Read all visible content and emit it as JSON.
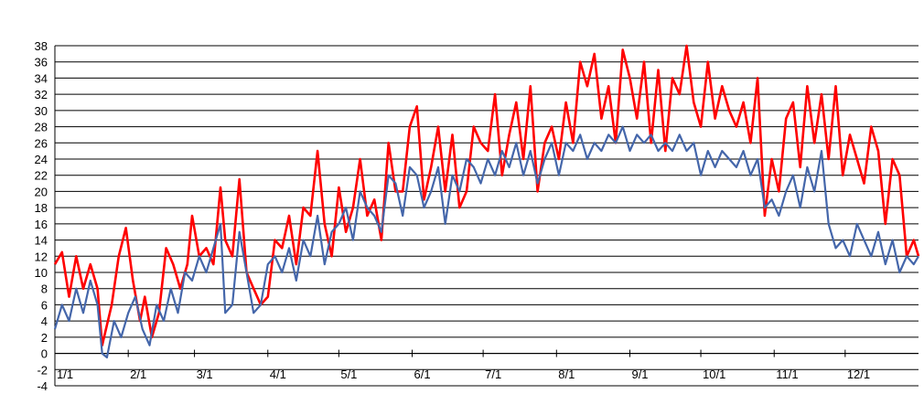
{
  "chart_data": {
    "type": "line",
    "title": "",
    "xlabel": "",
    "ylabel": "",
    "ylim": [
      -4,
      38
    ],
    "yticks": [
      -4,
      -2,
      0,
      2,
      4,
      6,
      8,
      10,
      12,
      14,
      16,
      18,
      20,
      22,
      24,
      26,
      28,
      30,
      32,
      34,
      36,
      38
    ],
    "grid": "horizontal",
    "legend": "none",
    "xlim": [
      0,
      365
    ],
    "x_tick_positions": [
      0,
      31,
      59,
      90,
      120,
      151,
      181,
      212,
      243,
      273,
      304,
      334
    ],
    "x_tick_labels": [
      "1/1",
      "2/1",
      "3/1",
      "4/1",
      "5/1",
      "6/1",
      "7/1",
      "8/1",
      "9/1",
      "10/1",
      "11/1",
      "12/1"
    ],
    "series": [
      {
        "color": "#ff0000",
        "points": [
          [
            0,
            11
          ],
          [
            3,
            12.5
          ],
          [
            6,
            7
          ],
          [
            9,
            12
          ],
          [
            12,
            8
          ],
          [
            15,
            11
          ],
          [
            18,
            8
          ],
          [
            20,
            1
          ],
          [
            24,
            6
          ],
          [
            27,
            12
          ],
          [
            30,
            15.5
          ],
          [
            33,
            9
          ],
          [
            36,
            4
          ],
          [
            38,
            7
          ],
          [
            41,
            2
          ],
          [
            44,
            5
          ],
          [
            47,
            13
          ],
          [
            50,
            11
          ],
          [
            53,
            8
          ],
          [
            56,
            11
          ],
          [
            58,
            17
          ],
          [
            61,
            12
          ],
          [
            64,
            13
          ],
          [
            67,
            11
          ],
          [
            70,
            20.5
          ],
          [
            72,
            14
          ],
          [
            75,
            12
          ],
          [
            78,
            21.5
          ],
          [
            81,
            10
          ],
          [
            84,
            8
          ],
          [
            87,
            6
          ],
          [
            90,
            7
          ],
          [
            93,
            14
          ],
          [
            96,
            13
          ],
          [
            99,
            17
          ],
          [
            102,
            11
          ],
          [
            105,
            18
          ],
          [
            108,
            17
          ],
          [
            111,
            25
          ],
          [
            114,
            16
          ],
          [
            117,
            12
          ],
          [
            120,
            20.5
          ],
          [
            123,
            15
          ],
          [
            126,
            18
          ],
          [
            129,
            24
          ],
          [
            132,
            17
          ],
          [
            135,
            19
          ],
          [
            138,
            14
          ],
          [
            141,
            26
          ],
          [
            144,
            20
          ],
          [
            147,
            20
          ],
          [
            150,
            28
          ],
          [
            153,
            30.5
          ],
          [
            156,
            19
          ],
          [
            159,
            23
          ],
          [
            162,
            28
          ],
          [
            165,
            20
          ],
          [
            168,
            27
          ],
          [
            171,
            18
          ],
          [
            174,
            20
          ],
          [
            177,
            28
          ],
          [
            180,
            26
          ],
          [
            183,
            25
          ],
          [
            186,
            32
          ],
          [
            189,
            22
          ],
          [
            192,
            27
          ],
          [
            195,
            31
          ],
          [
            198,
            24
          ],
          [
            201,
            33
          ],
          [
            204,
            20
          ],
          [
            207,
            26
          ],
          [
            210,
            28
          ],
          [
            213,
            24
          ],
          [
            216,
            31
          ],
          [
            219,
            26
          ],
          [
            222,
            36
          ],
          [
            225,
            33
          ],
          [
            228,
            37
          ],
          [
            231,
            29
          ],
          [
            234,
            33
          ],
          [
            237,
            26
          ],
          [
            240,
            37.5
          ],
          [
            243,
            34
          ],
          [
            246,
            29
          ],
          [
            249,
            36
          ],
          [
            252,
            26
          ],
          [
            255,
            35
          ],
          [
            258,
            25
          ],
          [
            261,
            34
          ],
          [
            264,
            32
          ],
          [
            267,
            38
          ],
          [
            270,
            31
          ],
          [
            273,
            28
          ],
          [
            276,
            36
          ],
          [
            279,
            29
          ],
          [
            282,
            33
          ],
          [
            285,
            30
          ],
          [
            288,
            28
          ],
          [
            291,
            31
          ],
          [
            294,
            26
          ],
          [
            297,
            34
          ],
          [
            300,
            17
          ],
          [
            303,
            24
          ],
          [
            306,
            20
          ],
          [
            309,
            29
          ],
          [
            312,
            31
          ],
          [
            315,
            23
          ],
          [
            318,
            33
          ],
          [
            321,
            26
          ],
          [
            324,
            32
          ],
          [
            327,
            24
          ],
          [
            330,
            33
          ],
          [
            333,
            22
          ],
          [
            336,
            27
          ],
          [
            339,
            24
          ],
          [
            342,
            21
          ],
          [
            345,
            28
          ],
          [
            348,
            25
          ],
          [
            351,
            16
          ],
          [
            354,
            24
          ],
          [
            357,
            22
          ],
          [
            360,
            12
          ],
          [
            363,
            14
          ],
          [
            365,
            12
          ]
        ]
      },
      {
        "color": "#4466aa",
        "points": [
          [
            0,
            3
          ],
          [
            3,
            6
          ],
          [
            6,
            4
          ],
          [
            9,
            8
          ],
          [
            12,
            5
          ],
          [
            15,
            9
          ],
          [
            18,
            6
          ],
          [
            20,
            0
          ],
          [
            22,
            -0.5
          ],
          [
            25,
            4
          ],
          [
            28,
            2
          ],
          [
            31,
            5
          ],
          [
            34,
            7
          ],
          [
            37,
            3
          ],
          [
            40,
            1
          ],
          [
            43,
            6
          ],
          [
            46,
            4
          ],
          [
            49,
            8
          ],
          [
            52,
            5
          ],
          [
            55,
            10
          ],
          [
            58,
            9
          ],
          [
            61,
            12
          ],
          [
            64,
            10
          ],
          [
            67,
            13
          ],
          [
            70,
            16
          ],
          [
            72,
            5
          ],
          [
            75,
            6
          ],
          [
            78,
            15
          ],
          [
            81,
            10
          ],
          [
            84,
            5
          ],
          [
            87,
            6
          ],
          [
            90,
            11
          ],
          [
            93,
            12
          ],
          [
            96,
            10
          ],
          [
            99,
            13
          ],
          [
            102,
            9
          ],
          [
            105,
            14
          ],
          [
            108,
            12
          ],
          [
            111,
            17
          ],
          [
            114,
            11
          ],
          [
            117,
            15
          ],
          [
            120,
            16
          ],
          [
            123,
            18
          ],
          [
            126,
            14
          ],
          [
            129,
            20
          ],
          [
            132,
            18
          ],
          [
            135,
            17
          ],
          [
            138,
            15
          ],
          [
            141,
            22
          ],
          [
            144,
            21
          ],
          [
            147,
            17
          ],
          [
            150,
            23
          ],
          [
            153,
            22
          ],
          [
            156,
            18
          ],
          [
            159,
            20
          ],
          [
            162,
            23
          ],
          [
            165,
            16
          ],
          [
            168,
            22
          ],
          [
            171,
            20
          ],
          [
            174,
            24
          ],
          [
            177,
            23
          ],
          [
            180,
            21
          ],
          [
            183,
            24
          ],
          [
            186,
            22
          ],
          [
            189,
            25
          ],
          [
            192,
            23
          ],
          [
            195,
            26
          ],
          [
            198,
            22
          ],
          [
            201,
            25
          ],
          [
            204,
            21
          ],
          [
            207,
            24
          ],
          [
            210,
            26
          ],
          [
            213,
            22
          ],
          [
            216,
            26
          ],
          [
            219,
            25
          ],
          [
            222,
            27
          ],
          [
            225,
            24
          ],
          [
            228,
            26
          ],
          [
            231,
            25
          ],
          [
            234,
            27
          ],
          [
            237,
            26
          ],
          [
            240,
            28
          ],
          [
            243,
            25
          ],
          [
            246,
            27
          ],
          [
            249,
            26
          ],
          [
            252,
            27
          ],
          [
            255,
            25
          ],
          [
            258,
            26
          ],
          [
            261,
            25
          ],
          [
            264,
            27
          ],
          [
            267,
            25
          ],
          [
            270,
            26
          ],
          [
            273,
            22
          ],
          [
            276,
            25
          ],
          [
            279,
            23
          ],
          [
            282,
            25
          ],
          [
            285,
            24
          ],
          [
            288,
            23
          ],
          [
            291,
            25
          ],
          [
            294,
            22
          ],
          [
            297,
            24
          ],
          [
            300,
            18
          ],
          [
            303,
            19
          ],
          [
            306,
            17
          ],
          [
            309,
            20
          ],
          [
            312,
            22
          ],
          [
            315,
            18
          ],
          [
            318,
            23
          ],
          [
            321,
            20
          ],
          [
            324,
            25
          ],
          [
            327,
            16
          ],
          [
            330,
            13
          ],
          [
            333,
            14
          ],
          [
            336,
            12
          ],
          [
            339,
            16
          ],
          [
            342,
            14
          ],
          [
            345,
            12
          ],
          [
            348,
            15
          ],
          [
            351,
            11
          ],
          [
            354,
            14
          ],
          [
            357,
            10
          ],
          [
            360,
            12
          ],
          [
            363,
            11
          ],
          [
            365,
            12
          ]
        ]
      }
    ]
  }
}
